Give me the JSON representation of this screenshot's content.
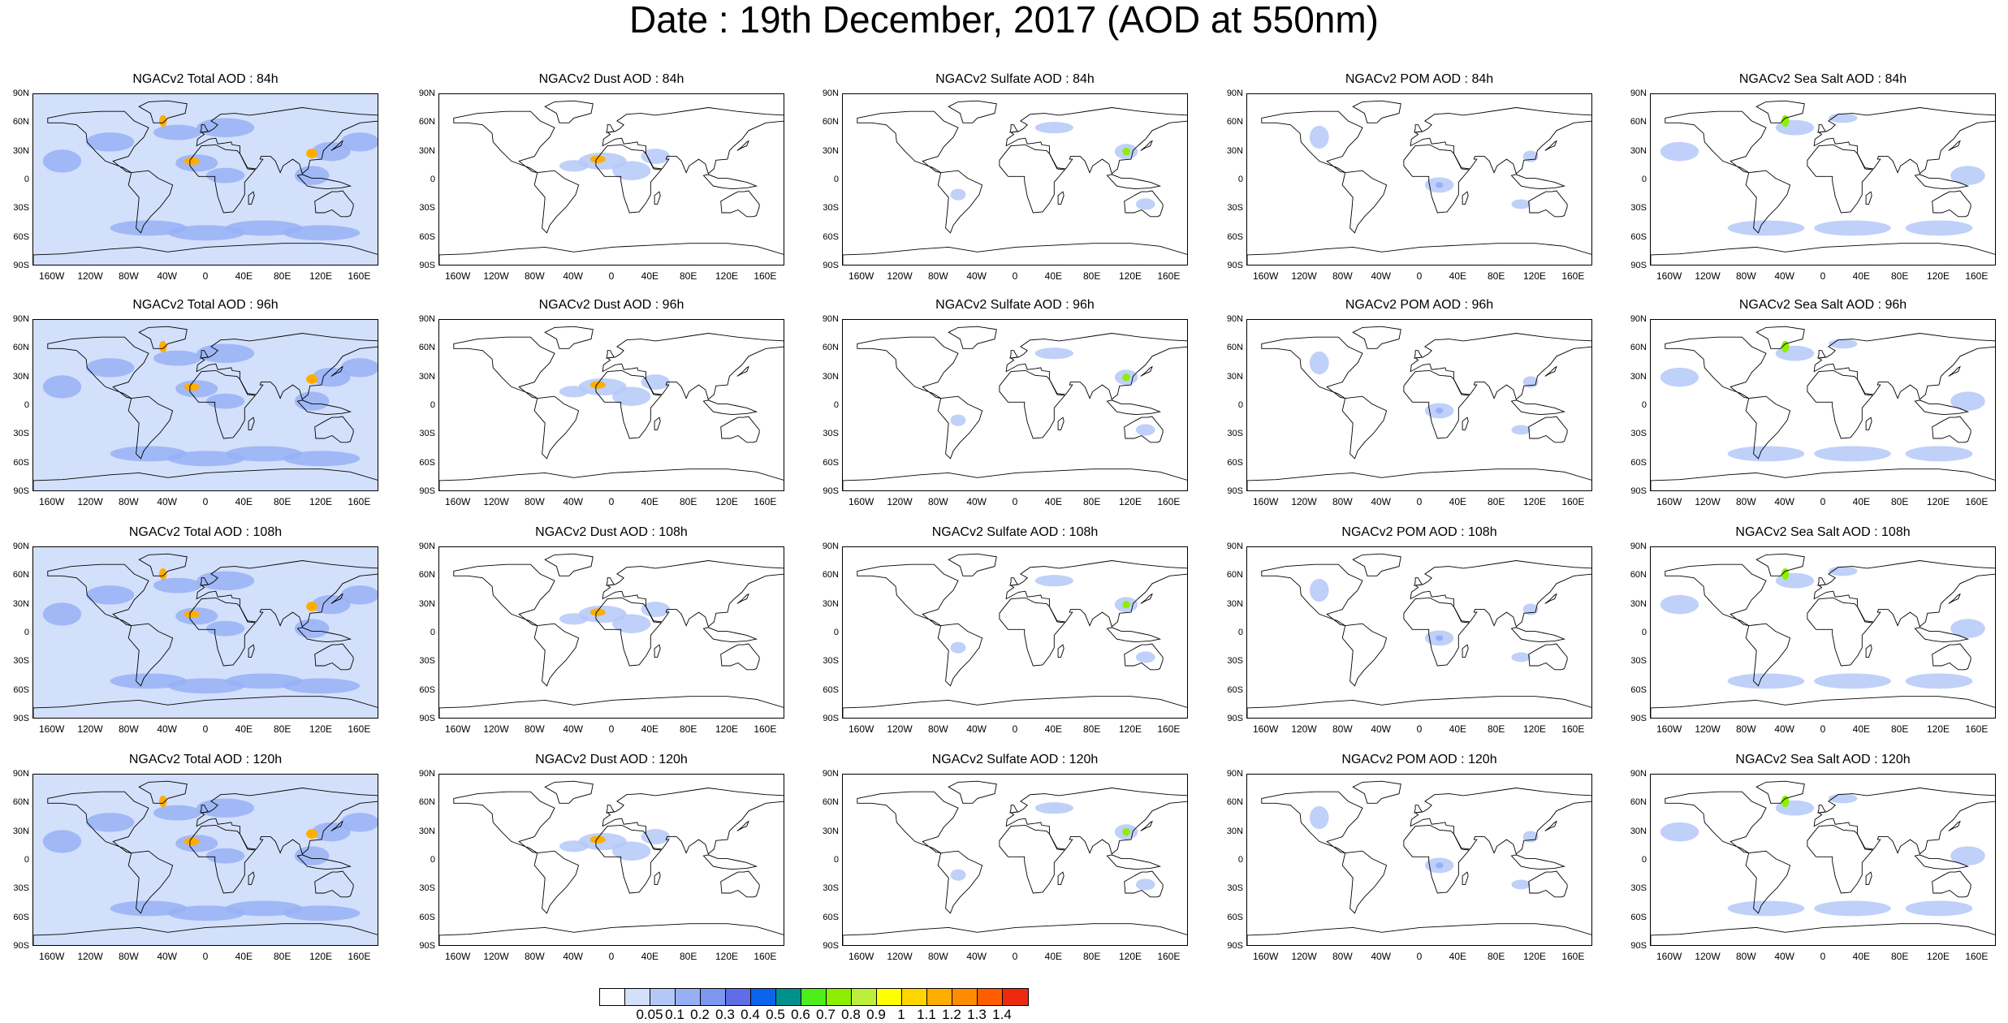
{
  "title": "Date : 19th December, 2017 (AOD at 550nm)",
  "y_ticks": [
    "90N",
    "60N",
    "30N",
    "0",
    "30S",
    "60S",
    "90S"
  ],
  "x_ticks": [
    "160W",
    "120W",
    "80W",
    "40W",
    "0",
    "40E",
    "80E",
    "120E",
    "160E"
  ],
  "panels": [
    {
      "title": "NGACv2 Total AOD : 84h",
      "species": "total",
      "forecast_hour": 84
    },
    {
      "title": "NGACv2 Dust AOD : 84h",
      "species": "dust",
      "forecast_hour": 84
    },
    {
      "title": "NGACv2 Sulfate AOD : 84h",
      "species": "sulfate",
      "forecast_hour": 84
    },
    {
      "title": "NGACv2 POM AOD : 84h",
      "species": "pom",
      "forecast_hour": 84
    },
    {
      "title": "NGACv2 Sea Salt AOD : 84h",
      "species": "seasalt",
      "forecast_hour": 84
    },
    {
      "title": "NGACv2 Total AOD : 96h",
      "species": "total",
      "forecast_hour": 96
    },
    {
      "title": "NGACv2 Dust AOD : 96h",
      "species": "dust",
      "forecast_hour": 96
    },
    {
      "title": "NGACv2 Sulfate AOD : 96h",
      "species": "sulfate",
      "forecast_hour": 96
    },
    {
      "title": "NGACv2 POM AOD : 96h",
      "species": "pom",
      "forecast_hour": 96
    },
    {
      "title": "NGACv2 Sea Salt AOD : 96h",
      "species": "seasalt",
      "forecast_hour": 96
    },
    {
      "title": "NGACv2 Total AOD : 108h",
      "species": "total",
      "forecast_hour": 108
    },
    {
      "title": "NGACv2 Dust AOD : 108h",
      "species": "dust",
      "forecast_hour": 108
    },
    {
      "title": "NGACv2 Sulfate AOD : 108h",
      "species": "sulfate",
      "forecast_hour": 108
    },
    {
      "title": "NGACv2 POM AOD : 108h",
      "species": "pom",
      "forecast_hour": 108
    },
    {
      "title": "NGACv2 Sea Salt AOD : 108h",
      "species": "seasalt",
      "forecast_hour": 108
    },
    {
      "title": "NGACv2 Total AOD : 120h",
      "species": "total",
      "forecast_hour": 120
    },
    {
      "title": "NGACv2 Dust AOD : 120h",
      "species": "dust",
      "forecast_hour": 120
    },
    {
      "title": "NGACv2 Sulfate AOD : 120h",
      "species": "sulfate",
      "forecast_hour": 120
    },
    {
      "title": "NGACv2 POM AOD : 120h",
      "species": "pom",
      "forecast_hour": 120
    },
    {
      "title": "NGACv2 Sea Salt  AOD : 120h",
      "species": "seasalt",
      "forecast_hour": 120
    }
  ],
  "colorbar": {
    "colors": [
      "#ffffff",
      "#d3e0fb",
      "#b4c8f8",
      "#97b0f5",
      "#7d97ef",
      "#5f6ee6",
      "#0b64ec",
      "#00908e",
      "#4cef1a",
      "#8dee00",
      "#bdee3c",
      "#ffff00",
      "#ffd500",
      "#ffad00",
      "#ff8c00",
      "#ff5d00",
      "#ee2a0e"
    ],
    "labels": [
      "0.05",
      "0.1",
      "0.2",
      "0.3",
      "0.4",
      "0.5",
      "0.6",
      "0.7",
      "0.8",
      "0.9",
      "1",
      "1.1",
      "1.2",
      "1.3",
      "1.4"
    ]
  },
  "species_fill": {
    "total": {
      "background": "#d3e0fb",
      "patch": "#97b0f5",
      "hotspot": "#ffad00"
    },
    "dust": {
      "background": "#ffffff",
      "patch": "#b4c8f8",
      "hotspot": "#ffad00"
    },
    "sulfate": {
      "background": "#ffffff",
      "patch": "#b4c8f8",
      "hotspot": "#8dee00"
    },
    "pom": {
      "background": "#ffffff",
      "patch": "#b4c8f8",
      "hotspot": "#97b0f5"
    },
    "seasalt": {
      "background": "#ffffff",
      "patch": "#b4c8f8",
      "hotspot": "#8dee00"
    }
  }
}
